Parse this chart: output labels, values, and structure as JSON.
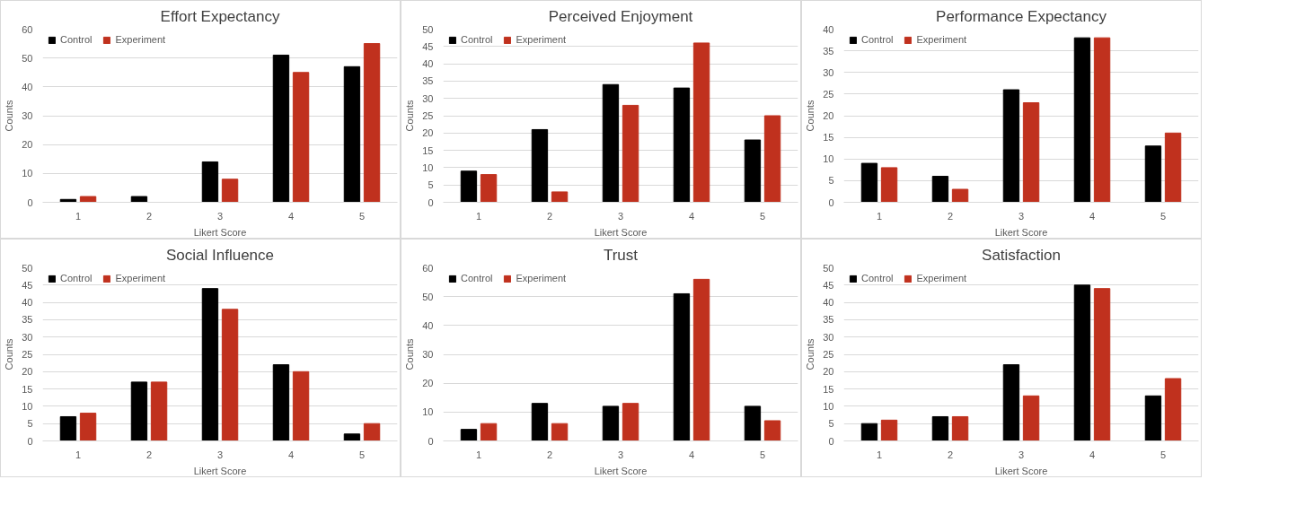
{
  "chart_data": [
    {
      "type": "bar",
      "title": "Effort Expectancy",
      "xlabel": "Likert Score",
      "ylabel": "Counts",
      "categories": [
        "1",
        "2",
        "3",
        "4",
        "5"
      ],
      "ylim": [
        0,
        60
      ],
      "yticks": [
        0,
        10,
        20,
        30,
        40,
        50,
        60
      ],
      "grid": "y",
      "legend": "top left",
      "series": [
        {
          "name": "Control",
          "color": "#000000",
          "values": [
            1,
            2,
            14,
            51,
            47
          ]
        },
        {
          "name": "Experiment",
          "color": "#c0311e",
          "values": [
            2,
            0,
            8,
            45,
            55
          ]
        }
      ]
    },
    {
      "type": "bar",
      "title": "Perceived Enjoyment",
      "xlabel": "Likert Score",
      "ylabel": "Counts",
      "categories": [
        "1",
        "2",
        "3",
        "4",
        "5"
      ],
      "ylim": [
        0,
        50
      ],
      "yticks": [
        0,
        5,
        10,
        15,
        20,
        25,
        30,
        35,
        40,
        45,
        50
      ],
      "grid": "y",
      "legend": "top left",
      "series": [
        {
          "name": "Control",
          "color": "#000000",
          "values": [
            9,
            21,
            34,
            33,
            18
          ]
        },
        {
          "name": "Experiment",
          "color": "#c0311e",
          "values": [
            8,
            3,
            28,
            46,
            25
          ]
        }
      ]
    },
    {
      "type": "bar",
      "title": "Performance Expectancy",
      "xlabel": "Likert Score",
      "ylabel": "Counts",
      "categories": [
        "1",
        "2",
        "3",
        "4",
        "5"
      ],
      "ylim": [
        0,
        40
      ],
      "yticks": [
        0,
        5,
        10,
        15,
        20,
        25,
        30,
        35,
        40
      ],
      "grid": "y",
      "legend": "top left",
      "series": [
        {
          "name": "Control",
          "color": "#000000",
          "values": [
            9,
            6,
            26,
            38,
            13
          ]
        },
        {
          "name": "Experiment",
          "color": "#c0311e",
          "values": [
            8,
            3,
            23,
            38,
            16
          ]
        }
      ]
    },
    {
      "type": "bar",
      "title": "Social Influence",
      "xlabel": "Likert Score",
      "ylabel": "Counts",
      "categories": [
        "1",
        "2",
        "3",
        "4",
        "5"
      ],
      "ylim": [
        0,
        50
      ],
      "yticks": [
        0,
        5,
        10,
        15,
        20,
        25,
        30,
        35,
        40,
        45,
        50
      ],
      "grid": "y",
      "legend": "top left",
      "series": [
        {
          "name": "Control",
          "color": "#000000",
          "values": [
            7,
            17,
            44,
            22,
            2
          ]
        },
        {
          "name": "Experiment",
          "color": "#c0311e",
          "values": [
            8,
            17,
            38,
            20,
            5
          ]
        }
      ]
    },
    {
      "type": "bar",
      "title": "Trust",
      "xlabel": "Likert Score",
      "ylabel": "Counts",
      "categories": [
        "1",
        "2",
        "3",
        "4",
        "5"
      ],
      "ylim": [
        0,
        60
      ],
      "yticks": [
        0,
        10,
        20,
        30,
        40,
        50,
        60
      ],
      "grid": "y",
      "legend": "top left",
      "series": [
        {
          "name": "Control",
          "color": "#000000",
          "values": [
            4,
            13,
            12,
            51,
            12
          ]
        },
        {
          "name": "Experiment",
          "color": "#c0311e",
          "values": [
            6,
            6,
            13,
            56,
            7
          ]
        }
      ]
    },
    {
      "type": "bar",
      "title": "Satisfaction",
      "xlabel": "Likert Score",
      "ylabel": "Counts",
      "categories": [
        "1",
        "2",
        "3",
        "4",
        "5"
      ],
      "ylim": [
        0,
        50
      ],
      "yticks": [
        0,
        5,
        10,
        15,
        20,
        25,
        30,
        35,
        40,
        45,
        50
      ],
      "grid": "y",
      "legend": "top left",
      "series": [
        {
          "name": "Control",
          "color": "#000000",
          "values": [
            5,
            7,
            22,
            45,
            13
          ]
        },
        {
          "name": "Experiment",
          "color": "#c0311e",
          "values": [
            6,
            7,
            13,
            44,
            18
          ]
        }
      ]
    }
  ]
}
